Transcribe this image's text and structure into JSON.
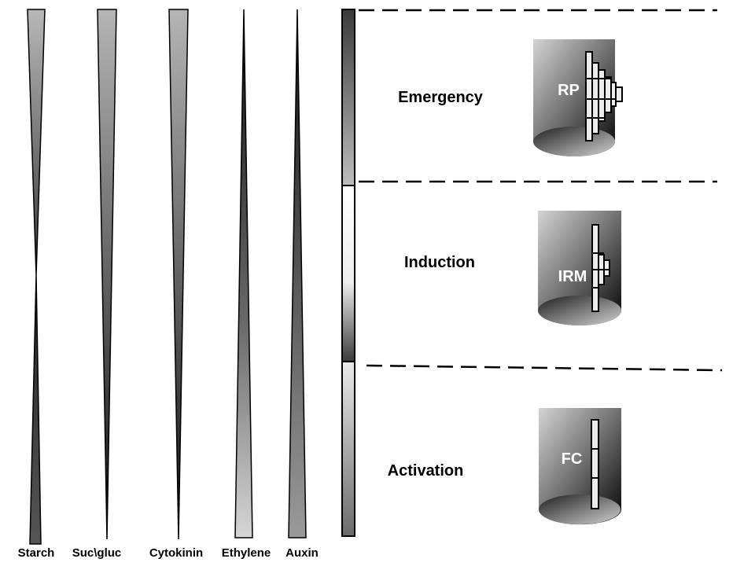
{
  "gradients": [
    {
      "label": "Starch",
      "direction": "decreasing"
    },
    {
      "label": "Suc\\gluc",
      "direction": "decreasing"
    },
    {
      "label": "Cytokinin",
      "direction": "decreasing"
    },
    {
      "label": "Ethylene",
      "direction": "increasing"
    },
    {
      "label": "Auxin",
      "direction": "increasing"
    }
  ],
  "stages": [
    {
      "label": "Emergency",
      "structure": "RP"
    },
    {
      "label": "Induction",
      "structure": "IRM"
    },
    {
      "label": "Activation",
      "structure": "FC"
    }
  ],
  "colors": {
    "stroke": "#000000",
    "dark_gray": "#3a3a3a",
    "light_gray": "#cfcfcf",
    "bar_fill": "#ebebeb"
  }
}
